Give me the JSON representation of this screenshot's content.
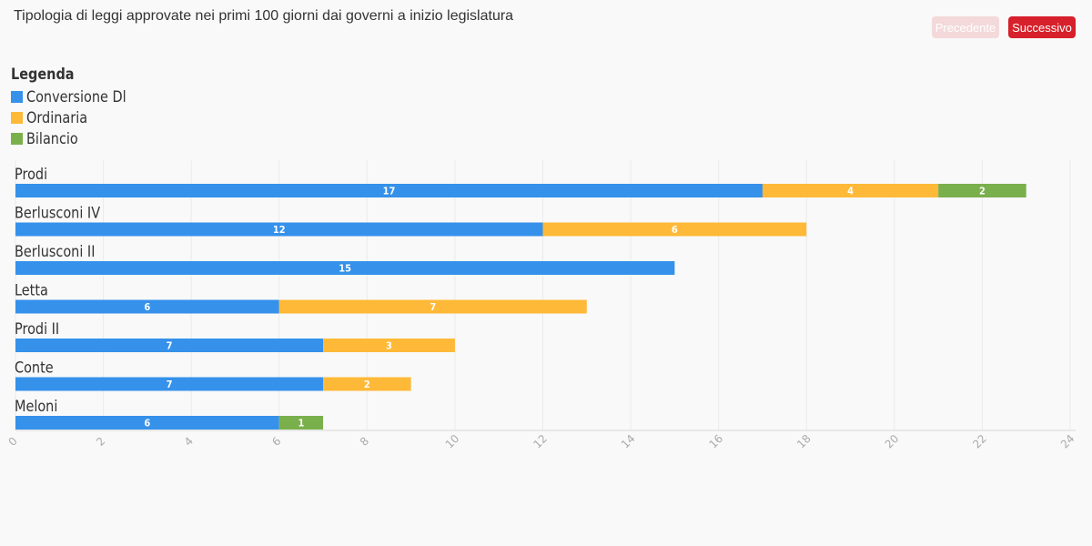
{
  "title": "Tipologia di leggi approvate nei primi 100 giorni dai governi a inizio legislatura",
  "nav": {
    "prev_label": "Precedente",
    "next_label": "Successivo"
  },
  "legend": {
    "title": "Legenda",
    "items": [
      {
        "label": "Conversione Dl",
        "color": "#3591ea"
      },
      {
        "label": "Ordinaria",
        "color": "#ffb938"
      },
      {
        "label": "Bilancio",
        "color": "#7ab04c"
      }
    ]
  },
  "chart_data": {
    "type": "bar",
    "orientation": "horizontal",
    "stacked": true,
    "categories": [
      "Prodi",
      "Berlusconi IV",
      "Berlusconi II",
      "Letta",
      "Prodi II",
      "Conte",
      "Meloni"
    ],
    "series": [
      {
        "name": "Conversione Dl",
        "color": "#3591ea",
        "values": [
          17,
          12,
          15,
          6,
          7,
          7,
          6
        ]
      },
      {
        "name": "Ordinaria",
        "color": "#ffb938",
        "values": [
          4,
          6,
          0,
          7,
          3,
          2,
          0
        ]
      },
      {
        "name": "Bilancio",
        "color": "#7ab04c",
        "values": [
          2,
          0,
          0,
          0,
          0,
          0,
          1
        ]
      }
    ],
    "xlim": [
      0,
      24
    ],
    "xticks": [
      0,
      2,
      4,
      6,
      8,
      10,
      12,
      14,
      16,
      18,
      20,
      22,
      24
    ],
    "grid": true,
    "legend_position": "top-left"
  }
}
